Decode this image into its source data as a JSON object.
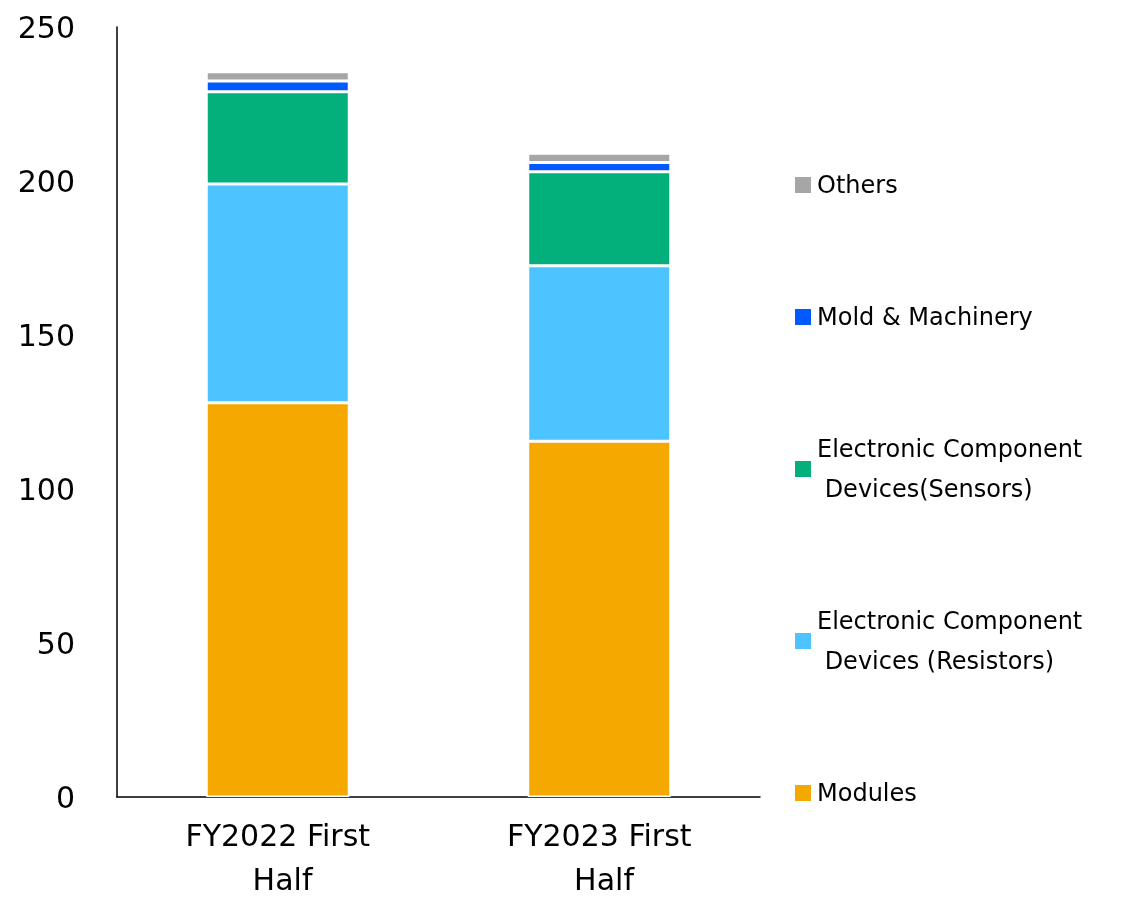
{
  "chart_data": {
    "type": "bar",
    "stacked": true,
    "categories": [
      "FY2022 First Half",
      "FY2023 First Half"
    ],
    "series": [
      {
        "name": "Modules",
        "color": "#f5a800",
        "values": [
          128,
          115.5
        ]
      },
      {
        "name": "Electronic Component Devices (Resistors)",
        "color": "#4dc3ff",
        "values": [
          71,
          57
        ]
      },
      {
        "name": "Electronic Component Devices(Sensors)",
        "color": "#03af7a",
        "values": [
          30,
          30.5
        ]
      },
      {
        "name": "Mold & Machinery",
        "color": "#005aff",
        "values": [
          3.5,
          3
        ]
      },
      {
        "name": "Others",
        "color": "#a6a6a6",
        "values": [
          3,
          3
        ]
      }
    ],
    "ylim": [
      0,
      250
    ],
    "yticks": [
      0,
      50,
      100,
      150,
      200,
      250
    ],
    "grid": false,
    "legend": "right"
  }
}
